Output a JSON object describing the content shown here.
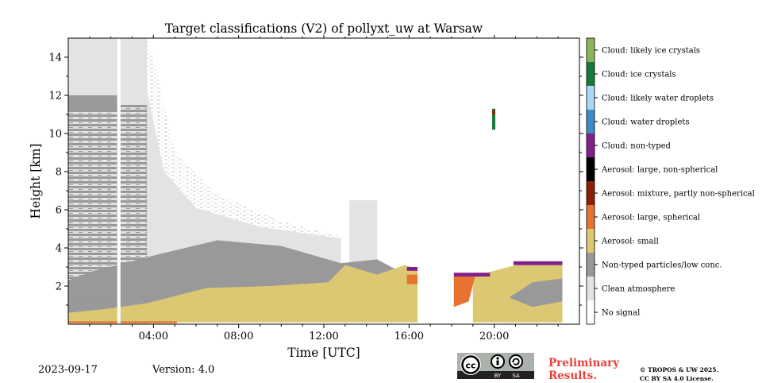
{
  "chart_data": {
    "type": "heatmap",
    "title": "Target classifications (V2) of pollyxt_uw at Warsaw",
    "xlabel": "Time [UTC]",
    "ylabel": "Height [km]",
    "xlim_hours": [
      0,
      24
    ],
    "ylim_km": [
      0,
      15
    ],
    "x_ticks": [
      {
        "hour": 4,
        "label": "04:00"
      },
      {
        "hour": 8,
        "label": "08:00"
      },
      {
        "hour": 12,
        "label": "12:00"
      },
      {
        "hour": 16,
        "label": "16:00"
      },
      {
        "hour": 20,
        "label": "20:00"
      }
    ],
    "y_ticks": [
      {
        "value": 2,
        "label": "2"
      },
      {
        "value": 4,
        "label": "4"
      },
      {
        "value": 6,
        "label": "6"
      },
      {
        "value": 8,
        "label": "8"
      },
      {
        "value": 10,
        "label": "10"
      },
      {
        "value": 12,
        "label": "12"
      },
      {
        "value": 14,
        "label": "14"
      }
    ],
    "legend_placement": "right colorbar",
    "classes": [
      {
        "label": "No signal",
        "color": "#ffffff"
      },
      {
        "label": "Clean atmosphere",
        "color": "#e3e3e3"
      },
      {
        "label": "Non-typed particles/low conc.",
        "color": "#999999"
      },
      {
        "label": "Aerosol: small",
        "color": "#dcc872"
      },
      {
        "label": "Aerosol: large, spherical",
        "color": "#e87330"
      },
      {
        "label": "Aerosol: mixture, partly non-spherical",
        "color": "#8b1f07"
      },
      {
        "label": "Aerosol: large, non-spherical",
        "color": "#000000"
      },
      {
        "label": "Cloud: non-typed",
        "color": "#7f2189"
      },
      {
        "label": "Cloud: water droplets",
        "color": "#3d8ac8"
      },
      {
        "label": "Cloud: likely water droplets",
        "color": "#acd7f5"
      },
      {
        "label": "Cloud: ice crystals",
        "color": "#187a38"
      },
      {
        "label": "Cloud: likely ice crystals",
        "color": "#89b65e"
      }
    ]
  },
  "footer": {
    "date": "2023-09-17",
    "version": "Version: 4.0",
    "license_badge": {
      "cc": "cc",
      "by": "BY",
      "sa": "SA"
    },
    "preliminary_line1": "Preliminary",
    "preliminary_line2": "Results.",
    "copyright_line1": "© TROPOS & UW 2025.",
    "copyright_line2": "CC BY SA 4.0 License."
  }
}
